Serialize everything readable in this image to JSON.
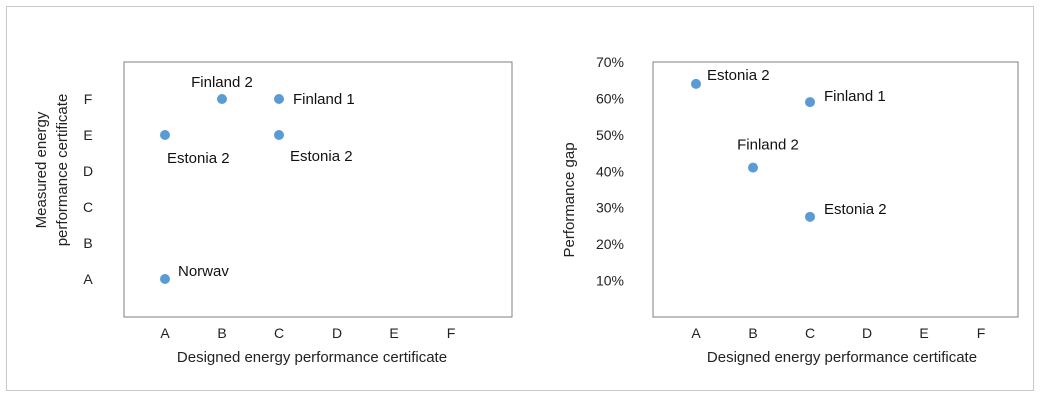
{
  "chart_data": [
    {
      "type": "scatter",
      "xlabel": "Designed energy performance certificate",
      "ylabel": "Measured energy\nperformance certificate",
      "x_categories": [
        "A",
        "B",
        "C",
        "D",
        "E",
        "F"
      ],
      "y_categories": [
        "A",
        "B",
        "C",
        "D",
        "E",
        "F"
      ],
      "grid": false,
      "points": [
        {
          "x": "B",
          "y": "F",
          "label": "Finland 2"
        },
        {
          "x": "C",
          "y": "F",
          "label": "Finland 1"
        },
        {
          "x": "A",
          "y": "E",
          "label": "Estonia 2"
        },
        {
          "x": "C",
          "y": "E",
          "label": "Estonia 2"
        },
        {
          "x": "A",
          "y": "A",
          "label": "Norwav"
        }
      ],
      "color": "#5b9bd5"
    },
    {
      "type": "scatter",
      "xlabel": "Designed energy performance certificate",
      "ylabel": "Performance gap",
      "x_categories": [
        "A",
        "B",
        "C",
        "D",
        "E",
        "F"
      ],
      "y_ticks": [
        "10%",
        "20%",
        "30%",
        "40%",
        "50%",
        "60%",
        "70%"
      ],
      "ylim": [
        0,
        70
      ],
      "grid": false,
      "points": [
        {
          "x": "A",
          "y": 64,
          "label": "Estonia 2"
        },
        {
          "x": "C",
          "y": 59,
          "label": "Finland 1"
        },
        {
          "x": "B",
          "y": 41,
          "label": "Finland 2"
        },
        {
          "x": "C",
          "y": 27.5,
          "label": "Estonia 2"
        }
      ],
      "color": "#5b9bd5"
    }
  ]
}
